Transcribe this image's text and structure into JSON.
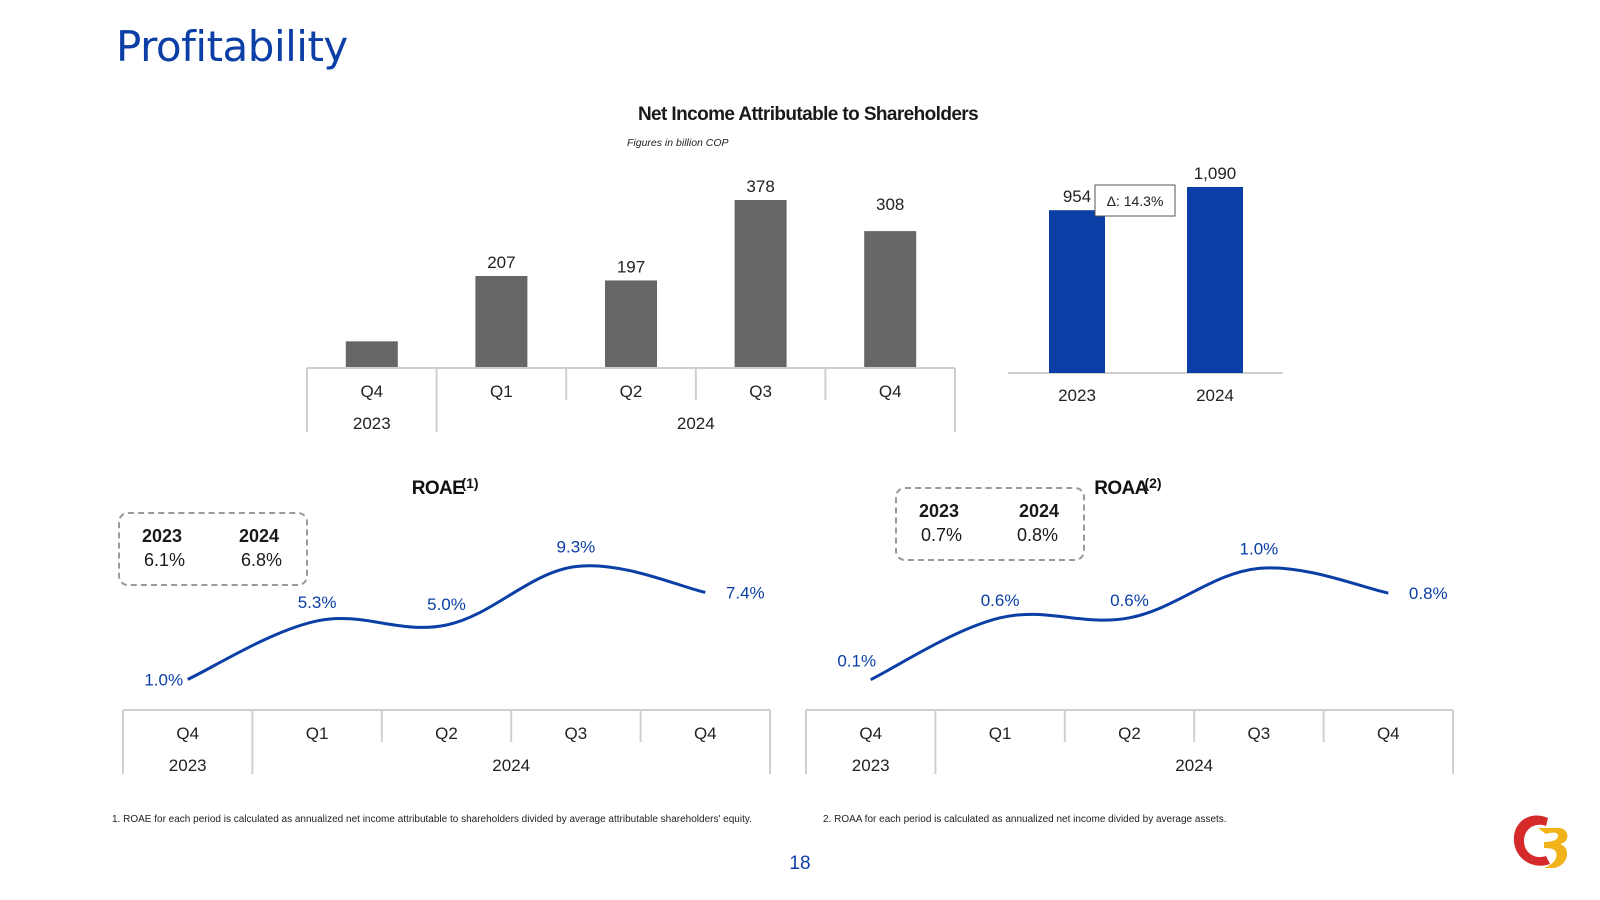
{
  "page": {
    "title": "Profitability",
    "page_number": "18",
    "footnotes": [
      "1. ROAE for each period is calculated as annualized net income attributable to shareholders divided by average attributable shareholders' equity.",
      "2. ROAA for each period is calculated as annualized net income divided by average assets."
    ],
    "colors": {
      "brand_blue": "#0b3fa6",
      "bar_gray": "#666666",
      "line_blue": "#0b3fa6"
    }
  },
  "kpis": {
    "roae": {
      "headers": [
        "2023",
        "2024"
      ],
      "values": [
        "6.1%",
        "6.8%"
      ]
    },
    "roaa": {
      "headers": [
        "2023",
        "2024"
      ],
      "values": [
        "0.7%",
        "0.8%"
      ]
    }
  },
  "chart_data": [
    {
      "type": "bar",
      "title": "Net Income Attributable to Shareholders",
      "subtitle": "Figures in billion COP",
      "categories": [
        "Q4",
        "Q1",
        "Q2",
        "Q3",
        "Q4"
      ],
      "group_labels": [
        "2023",
        "2024"
      ],
      "group_spans": [
        1,
        4
      ],
      "values": [
        60,
        207,
        197,
        378,
        308
      ],
      "data_labels": [
        "",
        "207",
        "197",
        "378",
        "308"
      ],
      "color": "#666666",
      "ylim": [
        0,
        400
      ]
    },
    {
      "type": "bar",
      "categories": [
        "2023",
        "2024"
      ],
      "values": [
        954,
        1090
      ],
      "data_labels": [
        "954",
        "1,090"
      ],
      "annotation": "Δ: 14.3%",
      "color": "#0b3fa6",
      "ylim": [
        0,
        1200
      ]
    },
    {
      "type": "line",
      "title": "ROAE",
      "title_sup": "(1)",
      "categories": [
        "Q4",
        "Q1",
        "Q2",
        "Q3",
        "Q4"
      ],
      "group_labels": [
        "2023",
        "2024"
      ],
      "group_spans": [
        1,
        4
      ],
      "values": [
        1.0,
        5.3,
        5.0,
        9.3,
        7.4
      ],
      "data_labels": [
        "1.0%",
        "5.3%",
        "5.0%",
        "9.3%",
        "7.4%"
      ],
      "ylim": [
        0,
        10
      ]
    },
    {
      "type": "line",
      "title": "ROAA",
      "title_sup": "(2)",
      "categories": [
        "Q4",
        "Q1",
        "Q2",
        "Q3",
        "Q4"
      ],
      "group_labels": [
        "2023",
        "2024"
      ],
      "group_spans": [
        1,
        4
      ],
      "values": [
        0.1,
        0.6,
        0.6,
        1.0,
        0.8
      ],
      "data_labels": [
        "0.1%",
        "0.6%",
        "0.6%",
        "1.0%",
        "0.8%"
      ],
      "ylim": [
        0,
        1.1
      ]
    }
  ]
}
